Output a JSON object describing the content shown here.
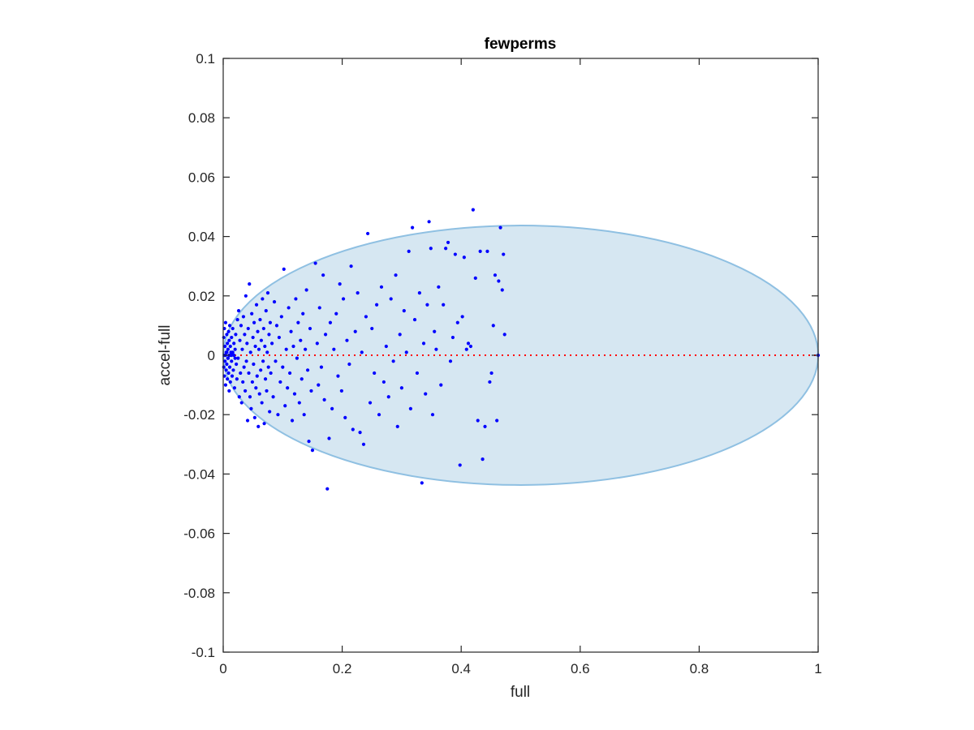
{
  "chart_data": {
    "type": "scatter",
    "title": "fewperms",
    "xlabel": "full",
    "ylabel": "accel-full",
    "xlim": [
      0,
      1
    ],
    "ylim": [
      -0.1,
      0.1
    ],
    "xticks": [
      0,
      0.2,
      0.4,
      0.6,
      0.8,
      1
    ],
    "xtick_labels": [
      "0",
      "0.2",
      "0.4",
      "0.6",
      "0.8",
      "1"
    ],
    "yticks": [
      -0.1,
      -0.08,
      -0.06,
      -0.04,
      -0.02,
      0,
      0.02,
      0.04,
      0.06,
      0.08,
      0.1
    ],
    "ytick_labels": [
      "-0.1",
      "-0.08",
      "-0.06",
      "-0.04",
      "-0.02",
      "0",
      "0.02",
      "0.04",
      "0.06",
      "0.08",
      "0.1"
    ],
    "grid": false,
    "box": true,
    "ellipse": {
      "center": [
        0.5,
        0
      ],
      "x_semi_axis": 0.5,
      "y_semi_axis": 0.0437,
      "fill": "#d6e7f2",
      "stroke": "#8fc0e2"
    },
    "reference_line": {
      "y": 0,
      "x_range": [
        0,
        1
      ],
      "color": "#ff0000",
      "style": "dotted"
    },
    "marker_color": "#0000ff",
    "points": [
      [
        0.001,
        0.006
      ],
      [
        0.001,
        -0.004
      ],
      [
        0.002,
        0.009
      ],
      [
        0.002,
        -0.007
      ],
      [
        0.003,
        0.003
      ],
      [
        0.003,
        -0.002
      ],
      [
        0.004,
        0.011
      ],
      [
        0.004,
        -0.01
      ],
      [
        0.005,
        0.001
      ],
      [
        0.005,
        -0.005
      ],
      [
        0.006,
        0.007
      ],
      [
        0.006,
        -0.003
      ],
      [
        0.007,
        0.004
      ],
      [
        0.007,
        -0.008
      ],
      [
        0.008,
        0.002
      ],
      [
        0.008,
        -0.001
      ],
      [
        0.009,
        0.008
      ],
      [
        0.009,
        -0.006
      ],
      [
        0.01,
        0.005
      ],
      [
        0.01,
        -0.012
      ],
      [
        0.011,
        0.01
      ],
      [
        0.011,
        -0.004
      ],
      [
        0.012,
        0.003
      ],
      [
        0.012,
        -0.009
      ],
      [
        0.013,
        0.001
      ],
      [
        0.014,
        0.006
      ],
      [
        0.014,
        -0.002
      ],
      [
        0.015,
        -0.007
      ],
      [
        0.016,
        0.009
      ],
      [
        0.017,
        -0.005
      ],
      [
        0.018,
        0.004
      ],
      [
        0.019,
        -0.011
      ],
      [
        0.02,
        0.002
      ],
      [
        0.021,
        0.007
      ],
      [
        0.022,
        -0.003
      ],
      [
        0.023,
        -0.008
      ],
      [
        0.024,
        0.012
      ],
      [
        0.025,
        -0.001
      ],
      [
        0.002,
        0.0
      ],
      [
        0.004,
        0.0
      ],
      [
        0.006,
        0.001
      ],
      [
        0.008,
        -0.001
      ],
      [
        0.012,
        0.0
      ],
      [
        0.016,
        0.001
      ],
      [
        0.02,
        -0.001
      ],
      [
        0.01,
        0.0
      ],
      [
        0.014,
        0.0
      ],
      [
        0.018,
        0.0
      ],
      [
        0.026,
        0.015
      ],
      [
        0.027,
        -0.014
      ],
      [
        0.028,
        0.005
      ],
      [
        0.029,
        -0.006
      ],
      [
        0.03,
        0.01
      ],
      [
        0.031,
        -0.016
      ],
      [
        0.032,
        0.002
      ],
      [
        0.033,
        -0.009
      ],
      [
        0.034,
        0.013
      ],
      [
        0.035,
        -0.004
      ],
      [
        0.036,
        0.007
      ],
      [
        0.037,
        -0.012
      ],
      [
        0.038,
        0.02
      ],
      [
        0.039,
        -0.002
      ],
      [
        0.04,
        0.004
      ],
      [
        0.041,
        -0.022
      ],
      [
        0.042,
        0.009
      ],
      [
        0.043,
        -0.006
      ],
      [
        0.044,
        0.024
      ],
      [
        0.045,
        -0.014
      ],
      [
        0.046,
        0.001
      ],
      [
        0.047,
        -0.018
      ],
      [
        0.048,
        0.014
      ],
      [
        0.049,
        -0.009
      ],
      [
        0.05,
        0.006
      ],
      [
        0.051,
        -0.003
      ],
      [
        0.052,
        0.011
      ],
      [
        0.053,
        -0.021
      ],
      [
        0.054,
        0.003
      ],
      [
        0.055,
        -0.011
      ],
      [
        0.056,
        0.017
      ],
      [
        0.057,
        -0.007
      ],
      [
        0.058,
        0.008
      ],
      [
        0.059,
        -0.024
      ],
      [
        0.06,
        0.002
      ],
      [
        0.061,
        -0.013
      ],
      [
        0.062,
        0.012
      ],
      [
        0.063,
        -0.005
      ],
      [
        0.064,
        0.005
      ],
      [
        0.065,
        -0.016
      ],
      [
        0.066,
        0.019
      ],
      [
        0.067,
        -0.002
      ],
      [
        0.068,
        0.009
      ],
      [
        0.069,
        -0.023
      ],
      [
        0.07,
        0.003
      ],
      [
        0.071,
        -0.008
      ],
      [
        0.072,
        0.015
      ],
      [
        0.073,
        -0.012
      ],
      [
        0.074,
        0.001
      ],
      [
        0.075,
        0.021
      ],
      [
        0.076,
        -0.004
      ],
      [
        0.077,
        0.007
      ],
      [
        0.078,
        -0.019
      ],
      [
        0.079,
        0.011
      ],
      [
        0.08,
        -0.006
      ],
      [
        0.082,
        0.004
      ],
      [
        0.084,
        -0.014
      ],
      [
        0.086,
        0.018
      ],
      [
        0.088,
        -0.002
      ],
      [
        0.09,
        0.01
      ],
      [
        0.092,
        -0.02
      ],
      [
        0.094,
        0.006
      ],
      [
        0.096,
        -0.009
      ],
      [
        0.098,
        0.013
      ],
      [
        0.1,
        -0.004
      ],
      [
        0.102,
        0.029
      ],
      [
        0.104,
        -0.017
      ],
      [
        0.106,
        0.002
      ],
      [
        0.108,
        -0.011
      ],
      [
        0.11,
        0.016
      ],
      [
        0.112,
        -0.006
      ],
      [
        0.114,
        0.008
      ],
      [
        0.116,
        -0.022
      ],
      [
        0.118,
        0.003
      ],
      [
        0.12,
        -0.013
      ],
      [
        0.122,
        0.019
      ],
      [
        0.124,
        -0.001
      ],
      [
        0.126,
        0.011
      ],
      [
        0.128,
        -0.016
      ],
      [
        0.13,
        0.005
      ],
      [
        0.132,
        -0.008
      ],
      [
        0.134,
        0.014
      ],
      [
        0.136,
        -0.02
      ],
      [
        0.138,
        0.002
      ],
      [
        0.14,
        0.022
      ],
      [
        0.142,
        -0.005
      ],
      [
        0.144,
        -0.029
      ],
      [
        0.146,
        0.009
      ],
      [
        0.148,
        -0.012
      ],
      [
        0.15,
        -0.032
      ],
      [
        0.155,
        0.031
      ],
      [
        0.158,
        0.004
      ],
      [
        0.16,
        -0.01
      ],
      [
        0.162,
        0.016
      ],
      [
        0.165,
        -0.004
      ],
      [
        0.168,
        0.027
      ],
      [
        0.17,
        -0.015
      ],
      [
        0.172,
        0.007
      ],
      [
        0.175,
        -0.045
      ],
      [
        0.178,
        -0.028
      ],
      [
        0.18,
        0.011
      ],
      [
        0.183,
        -0.018
      ],
      [
        0.186,
        0.002
      ],
      [
        0.19,
        0.014
      ],
      [
        0.193,
        -0.007
      ],
      [
        0.196,
        0.024
      ],
      [
        0.199,
        -0.012
      ],
      [
        0.202,
        0.019
      ],
      [
        0.205,
        -0.021
      ],
      [
        0.208,
        0.005
      ],
      [
        0.212,
        -0.003
      ],
      [
        0.215,
        0.03
      ],
      [
        0.218,
        -0.025
      ],
      [
        0.222,
        0.008
      ],
      [
        0.226,
        0.021
      ],
      [
        0.23,
        -0.026
      ],
      [
        0.233,
        0.001
      ],
      [
        0.236,
        -0.03
      ],
      [
        0.24,
        0.013
      ],
      [
        0.243,
        0.041
      ],
      [
        0.247,
        -0.016
      ],
      [
        0.25,
        0.009
      ],
      [
        0.254,
        -0.006
      ],
      [
        0.258,
        0.017
      ],
      [
        0.262,
        -0.02
      ],
      [
        0.266,
        0.023
      ],
      [
        0.27,
        -0.009
      ],
      [
        0.274,
        0.003
      ],
      [
        0.278,
        -0.014
      ],
      [
        0.282,
        0.019
      ],
      [
        0.286,
        -0.002
      ],
      [
        0.29,
        0.027
      ],
      [
        0.293,
        -0.024
      ],
      [
        0.297,
        0.007
      ],
      [
        0.3,
        -0.011
      ],
      [
        0.304,
        0.015
      ],
      [
        0.308,
        0.001
      ],
      [
        0.312,
        0.035
      ],
      [
        0.315,
        -0.018
      ],
      [
        0.318,
        0.043
      ],
      [
        0.322,
        0.012
      ],
      [
        0.326,
        -0.006
      ],
      [
        0.33,
        0.021
      ],
      [
        0.334,
        -0.043
      ],
      [
        0.337,
        0.004
      ],
      [
        0.34,
        -0.013
      ],
      [
        0.343,
        0.017
      ],
      [
        0.346,
        0.045
      ],
      [
        0.349,
        0.036
      ],
      [
        0.352,
        -0.02
      ],
      [
        0.355,
        0.008
      ],
      [
        0.358,
        0.002
      ],
      [
        0.362,
        0.023
      ],
      [
        0.366,
        -0.01
      ],
      [
        0.37,
        0.017
      ],
      [
        0.374,
        0.036
      ],
      [
        0.378,
        0.038
      ],
      [
        0.382,
        -0.002
      ],
      [
        0.386,
        0.006
      ],
      [
        0.39,
        0.034
      ],
      [
        0.394,
        0.011
      ],
      [
        0.398,
        -0.037
      ],
      [
        0.402,
        0.013
      ],
      [
        0.405,
        0.033
      ],
      [
        0.409,
        0.002
      ],
      [
        0.412,
        0.004
      ],
      [
        0.416,
        0.003
      ],
      [
        0.42,
        0.049
      ],
      [
        0.424,
        0.026
      ],
      [
        0.428,
        -0.022
      ],
      [
        0.432,
        0.035
      ],
      [
        0.436,
        -0.035
      ],
      [
        0.44,
        -0.024
      ],
      [
        0.444,
        0.035
      ],
      [
        0.448,
        -0.009
      ],
      [
        0.451,
        -0.006
      ],
      [
        0.454,
        0.01
      ],
      [
        0.457,
        0.027
      ],
      [
        0.46,
        -0.022
      ],
      [
        0.463,
        0.025
      ],
      [
        0.466,
        0.043
      ],
      [
        0.469,
        0.022
      ],
      [
        0.471,
        0.034
      ],
      [
        0.473,
        0.007
      ],
      [
        1.0,
        0.0
      ]
    ]
  }
}
